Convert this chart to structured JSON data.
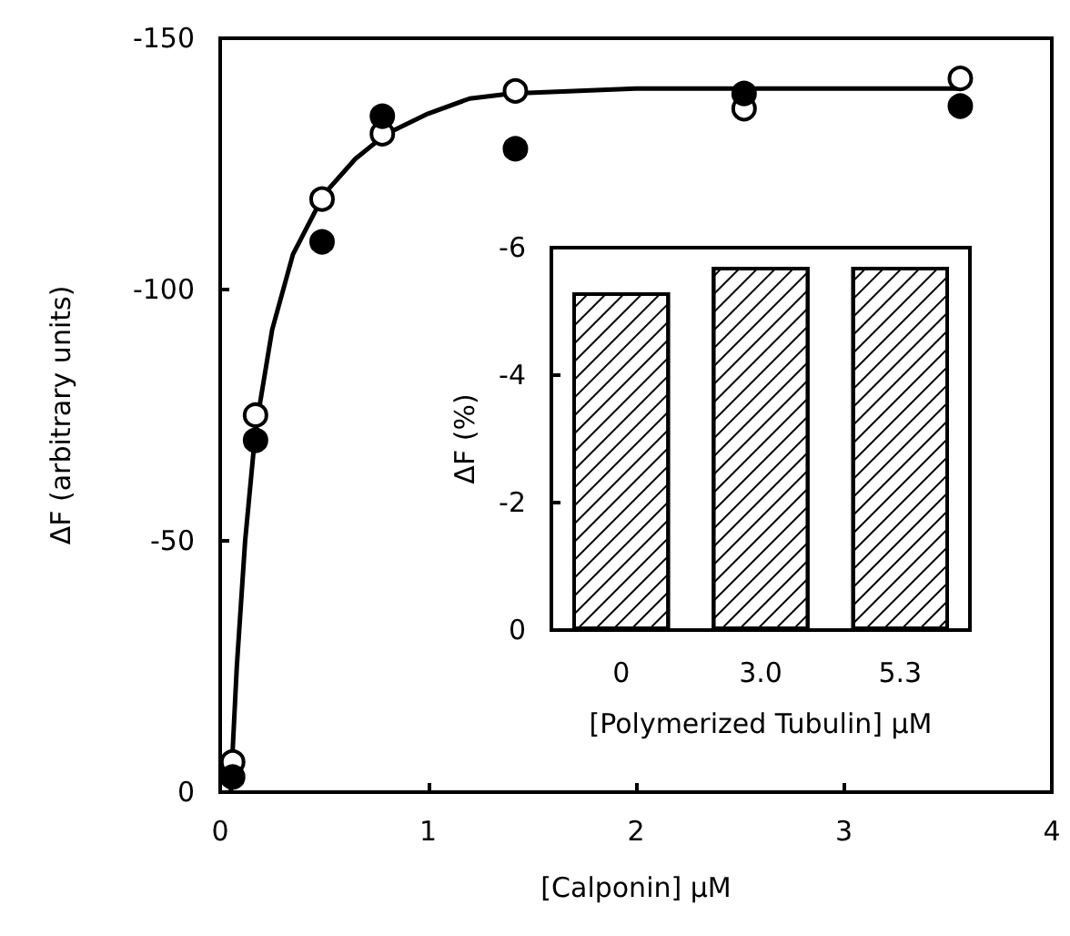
{
  "chart_data": [
    {
      "type": "scatter",
      "xlabel": "[Calponin] μM",
      "ylabel": "ΔF (arbitrary units)",
      "xlim": [
        0,
        4
      ],
      "xticks": [
        0,
        1,
        2,
        3,
        4
      ],
      "ylim": [
        0,
        -150
      ],
      "yticks": [
        0,
        -50,
        -100,
        -150
      ],
      "grid": false,
      "series": [
        {
          "color": "#ffffff",
          "marker": "circle",
          "x": [
            0.06,
            0.17,
            0.49,
            0.78,
            1.42,
            2.52,
            3.56
          ],
          "values": [
            -6,
            -75,
            -118,
            -131,
            -139.5,
            -136,
            -142
          ]
        },
        {
          "color": "#000000",
          "marker": "circle",
          "x": [
            0.06,
            0.17,
            0.49,
            0.78,
            1.42,
            2.52,
            3.56
          ],
          "values": [
            -3,
            -70,
            -109.5,
            -134.5,
            -128,
            -139,
            -136.5
          ]
        },
        {
          "type": "line",
          "marker": "none",
          "color": "#000000",
          "x": [
            0.05,
            0.08,
            0.12,
            0.17,
            0.25,
            0.35,
            0.5,
            0.65,
            0.8,
            1.0,
            1.2,
            1.4,
            2.0,
            2.5,
            3.0,
            3.56
          ],
          "values": [
            0,
            -25,
            -50,
            -72,
            -92,
            -107,
            -119,
            -126,
            -131,
            -135,
            -138,
            -139,
            -140,
            -140,
            -140,
            -140
          ]
        }
      ]
    },
    {
      "type": "bar",
      "xlabel": "[Polymerized Tubulin] μM",
      "ylabel": "ΔF (%)",
      "categories": [
        "0",
        "3.0",
        "5.3"
      ],
      "ylim": [
        0,
        -6
      ],
      "yticks": [
        0,
        -2,
        -4,
        -6
      ],
      "grid": false,
      "series": [
        {
          "color": "#ffffff",
          "values": [
            -5.3,
            -5.7,
            -5.7
          ]
        }
      ]
    }
  ]
}
